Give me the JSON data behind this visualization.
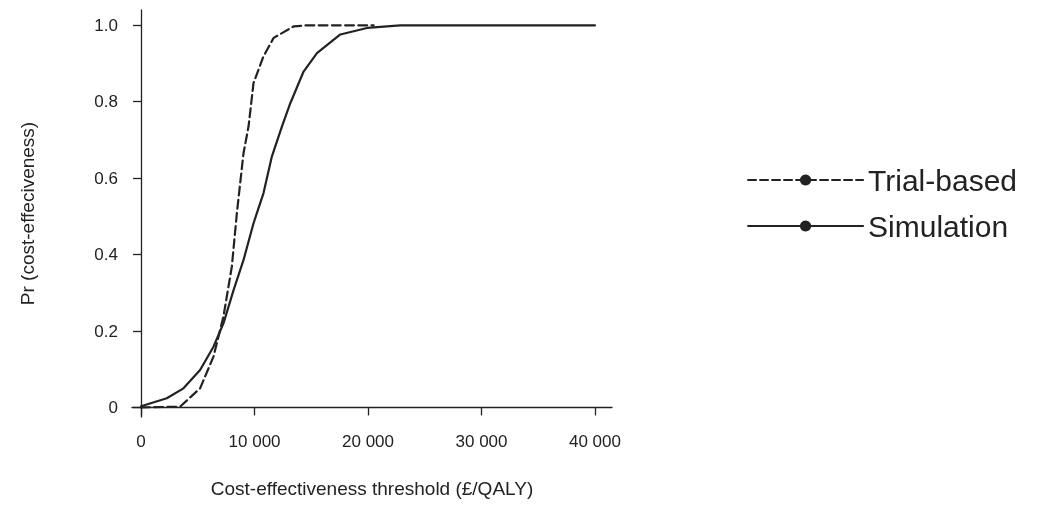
{
  "chart_data": {
    "type": "line",
    "xlabel": "Cost-effectiveness threshold (£/QALY)",
    "ylabel": "Pr (cost-effeciveness)",
    "xlim": [
      -800,
      41500
    ],
    "xticks": [
      0,
      {
        "value": 10000,
        "label": "10 000"
      },
      {
        "value": 20000,
        "label": "20 000"
      },
      {
        "value": 30000,
        "label": "30 000"
      },
      {
        "value": 40000,
        "label": "40 000"
      }
    ],
    "ylim": [
      -0.025,
      1.04
    ],
    "yticks": [
      0,
      0.2,
      0.4,
      0.6,
      0.8,
      {
        "value": 1,
        "label": "1.0"
      }
    ],
    "grid": false,
    "legend": "right",
    "marker": "none",
    "series": [
      {
        "name": "Trial-based",
        "color": "#222222",
        "line_style": "dashed",
        "x": [
          0,
          3440,
          5200,
          6380,
          7260,
          8000,
          8440,
          9030,
          9470,
          9910,
          10790,
          11680,
          13440,
          14620,
          20500
        ],
        "values": [
          0,
          0.002,
          0.05,
          0.133,
          0.238,
          0.369,
          0.508,
          0.666,
          0.735,
          0.849,
          0.919,
          0.967,
          0.997,
          1,
          1
        ]
      },
      {
        "name": "Simulation",
        "color": "#222222",
        "line_style": "solid",
        "x": [
          0,
          2265,
          3735,
          5200,
          6380,
          7260,
          8150,
          9030,
          9910,
          10790,
          11530,
          12410,
          13150,
          14320,
          15500,
          17560,
          19910,
          22850,
          40000
        ],
        "values": [
          0.003,
          0.024,
          0.05,
          0.098,
          0.159,
          0.22,
          0.307,
          0.386,
          0.482,
          0.561,
          0.657,
          0.735,
          0.796,
          0.879,
          0.927,
          0.976,
          0.993,
          1,
          1
        ]
      }
    ]
  }
}
